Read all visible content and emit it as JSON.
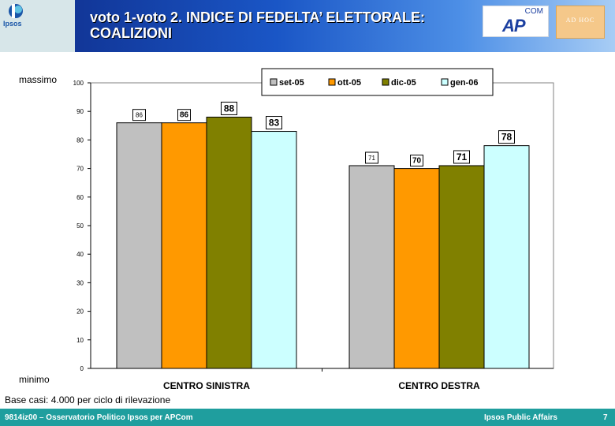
{
  "header": {
    "logo_text": "Ipsos",
    "title_line1": "voto 1-voto 2. INDICE DI FEDELTA’ ELETTORALE:",
    "title_line2": "COALIZIONI",
    "apcom_logo": {
      "com": "COM",
      "ap": "AP"
    },
    "adhoc_logo": "AD HOC"
  },
  "scale": {
    "max_label": "massimo",
    "min_label": "minimo"
  },
  "chart_data": {
    "type": "bar",
    "categories": [
      "CENTRO SINISTRA",
      "CENTRO DESTRA"
    ],
    "series": [
      {
        "name": "set-05",
        "color": "#c0c0c0",
        "values": [
          86,
          71
        ]
      },
      {
        "name": "ott-05",
        "color": "#ff9900",
        "values": [
          86,
          70
        ]
      },
      {
        "name": "dic-05",
        "color": "#808000",
        "values": [
          88,
          71
        ]
      },
      {
        "name": "gen-06",
        "color": "#ccffff",
        "values": [
          83,
          78
        ]
      }
    ],
    "ylim": [
      0,
      100
    ],
    "yticks": [
      0,
      10,
      20,
      30,
      40,
      50,
      60,
      70,
      80,
      90,
      100
    ],
    "legend": "top"
  },
  "note": "Base casi: 4.000 per ciclo di rilevazione",
  "footer": {
    "left": "9814iz00 – Osservatorio Politico Ipsos per APCom",
    "right": "Ipsos Public Affairs",
    "page": "7"
  }
}
